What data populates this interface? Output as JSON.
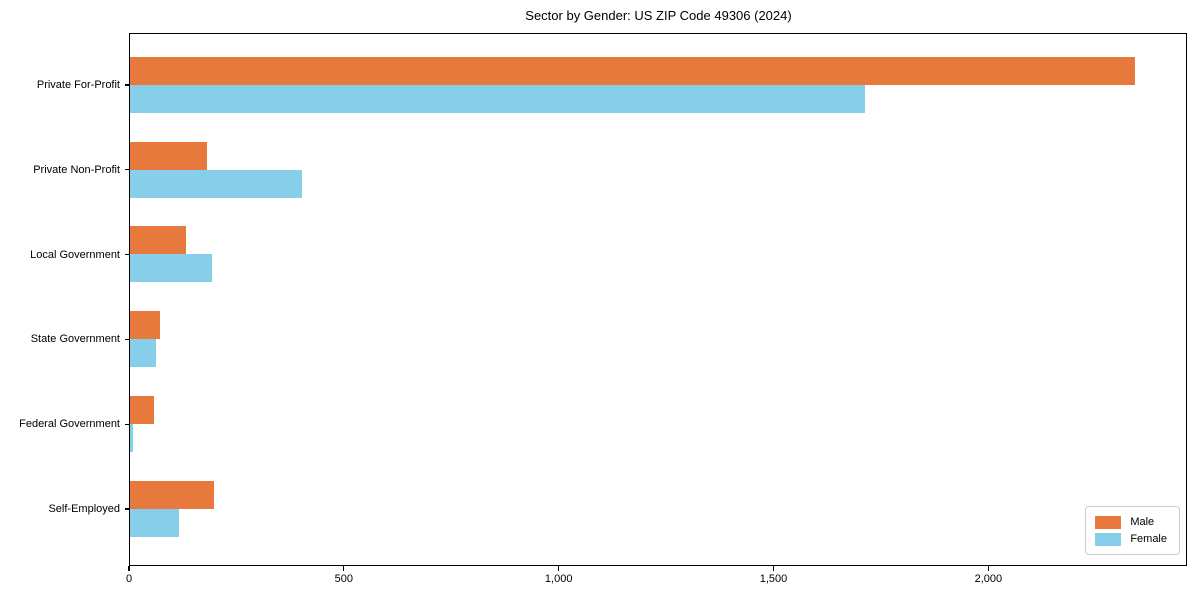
{
  "title": "Sector by Gender: US ZIP Code 49306 (2024)",
  "chart_data": {
    "type": "bar",
    "orientation": "horizontal",
    "title": "Sector by Gender: US ZIP Code 49306 (2024)",
    "categories": [
      "Private For-Profit",
      "Private Non-Profit",
      "Local Government",
      "State Government",
      "Federal Government",
      "Self-Employed"
    ],
    "series": [
      {
        "name": "Male",
        "color": "#E8793D",
        "values": [
          2340,
          180,
          130,
          70,
          55,
          195
        ]
      },
      {
        "name": "Female",
        "color": "#87CEEB",
        "values": [
          1710,
          400,
          190,
          60,
          6,
          115
        ]
      }
    ],
    "xlabel": "",
    "ylabel": "",
    "xlim": [
      0,
      2460
    ],
    "x_ticks": [
      0,
      500,
      1000,
      1500,
      2000
    ],
    "x_tick_labels": [
      "0",
      "500",
      "1,000",
      "1,500",
      "2,000"
    ],
    "grid": false,
    "legend_position": "lower right"
  },
  "legend": {
    "items": [
      {
        "label": "Male",
        "color": "#E8793D"
      },
      {
        "label": "Female",
        "color": "#87CEEB"
      }
    ]
  },
  "colors": {
    "background": "#FFFFFF",
    "spine": "#000000",
    "text": "#000000",
    "legend_border": "#CCCCCC"
  }
}
